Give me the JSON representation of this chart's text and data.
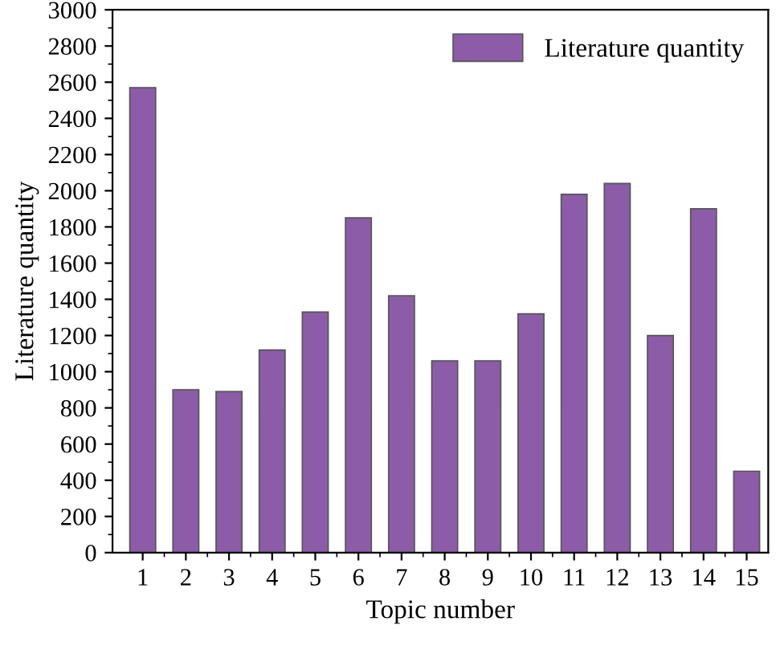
{
  "chart_data": {
    "type": "bar",
    "xlabel": "Topic number",
    "ylabel": "Literature quantity",
    "categories": [
      "1",
      "2",
      "3",
      "4",
      "5",
      "6",
      "7",
      "8",
      "9",
      "10",
      "11",
      "12",
      "13",
      "14",
      "15"
    ],
    "series": [
      {
        "name": "Literature quantity",
        "color": "#8c5ca8",
        "values": [
          2570,
          900,
          890,
          1120,
          1330,
          1850,
          1420,
          1060,
          1060,
          1320,
          1980,
          2040,
          1200,
          1900,
          450
        ]
      }
    ],
    "ylim": [
      0,
      3000
    ],
    "yticks": [
      0,
      200,
      400,
      600,
      800,
      1000,
      1200,
      1400,
      1600,
      1800,
      2000,
      2200,
      2400,
      2600,
      2800,
      3000
    ],
    "grid": false,
    "legend": "top right"
  }
}
